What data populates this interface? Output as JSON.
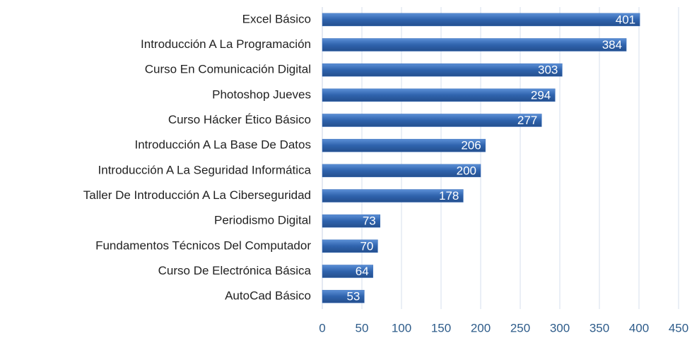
{
  "chart_data": {
    "type": "bar",
    "orientation": "horizontal",
    "categories": [
      "Excel Básico",
      "Introducción A La Programación",
      "Curso En Comunicación Digital",
      "Photoshop Jueves",
      "Curso Hácker Ético Básico",
      "Introducción A La Base De Datos",
      "Introducción A La Seguridad Informática",
      "Taller De Introducción A La Ciberseguridad",
      "Periodismo Digital",
      "Fundamentos Técnicos Del Computador",
      "Curso De Electrónica Básica",
      "AutoCad Básico"
    ],
    "values": [
      401,
      384,
      303,
      294,
      277,
      206,
      200,
      178,
      73,
      70,
      64,
      53
    ],
    "color": "#3a6fba",
    "xlim": [
      0,
      450
    ],
    "xticks": [
      0,
      50,
      100,
      150,
      200,
      250,
      300,
      350,
      400,
      450
    ],
    "grid": true
  }
}
